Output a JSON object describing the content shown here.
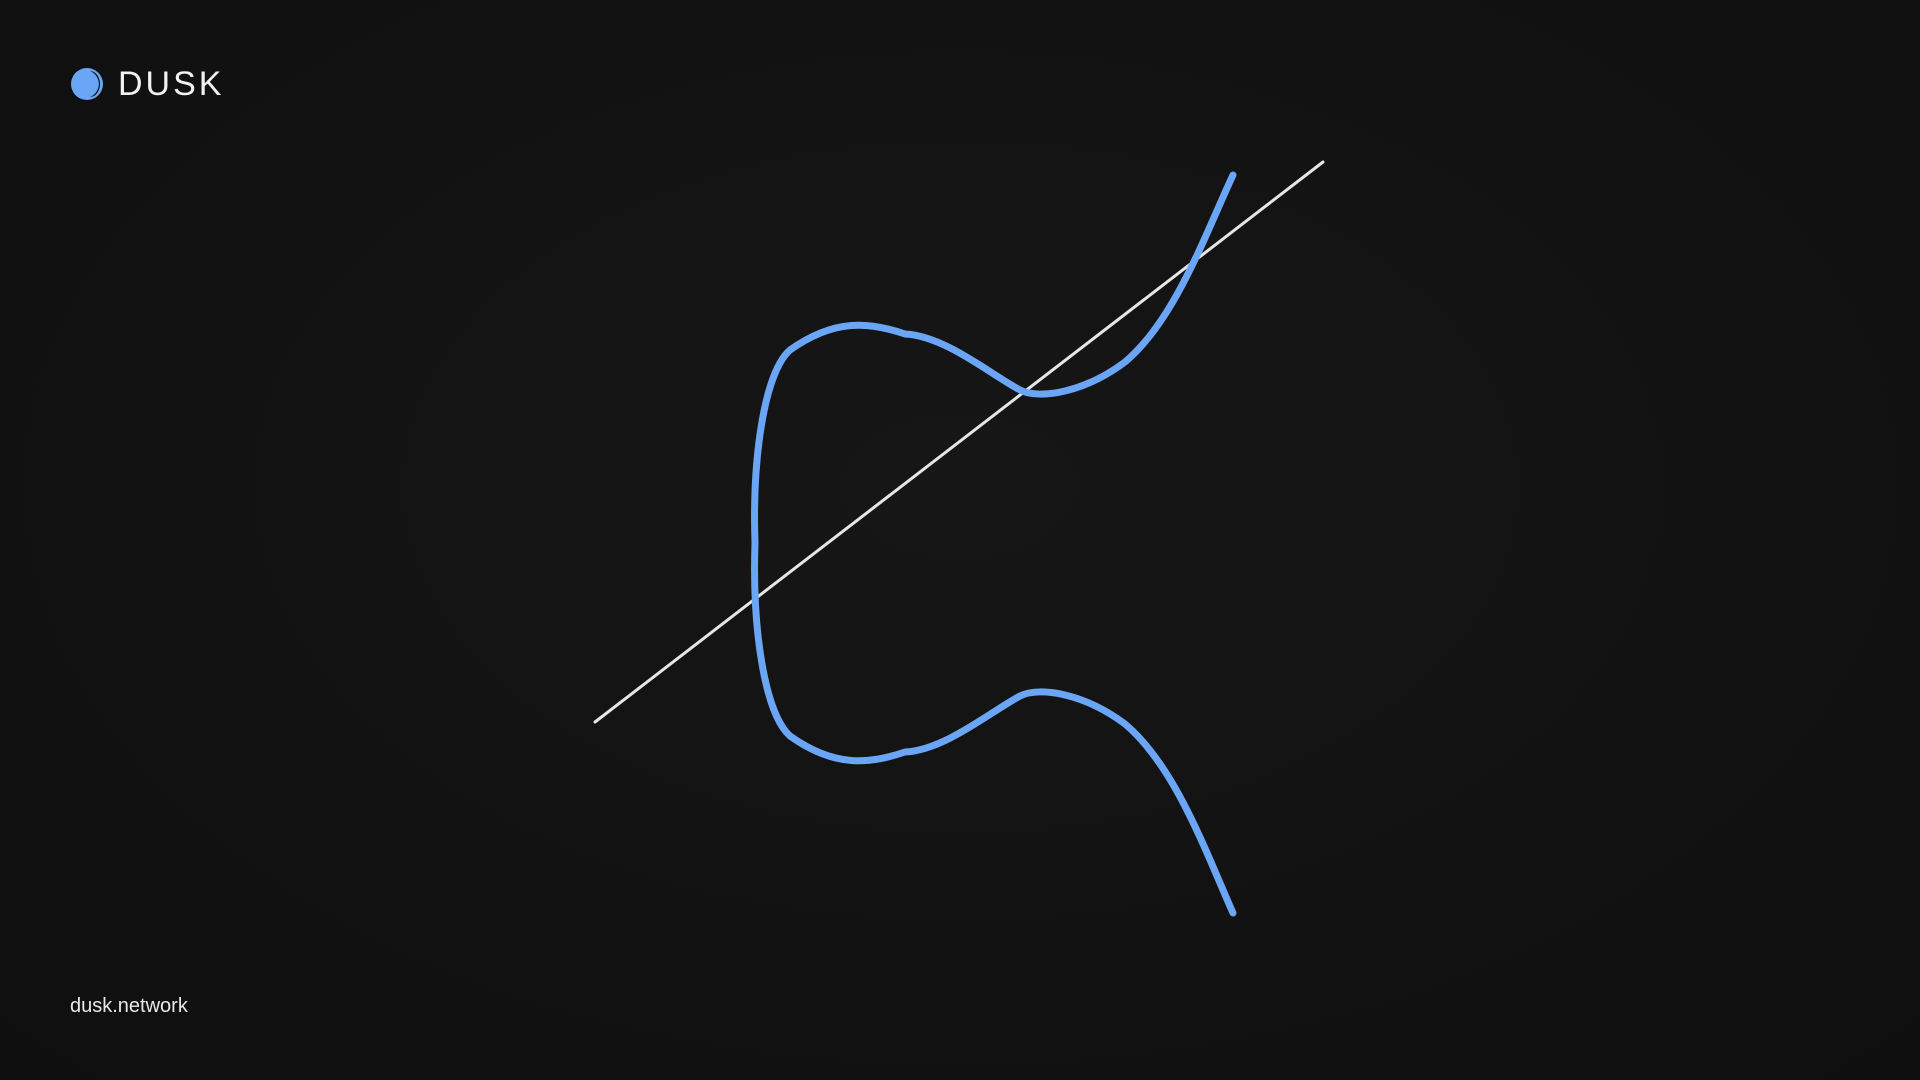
{
  "brand": {
    "name": "DUSK",
    "logo_icon": "half-moon-icon"
  },
  "footer": {
    "url_text": "dusk.network"
  },
  "diagram": {
    "description_type": "elliptic-curve-with-secant-line",
    "curve_color": "#6aa6f5",
    "line_color": "#e6e6e6",
    "axis_color": "#d8d8d8"
  },
  "colors": {
    "background": "#121212",
    "accent": "#6aa6f5",
    "text": "#f2f2f2"
  }
}
